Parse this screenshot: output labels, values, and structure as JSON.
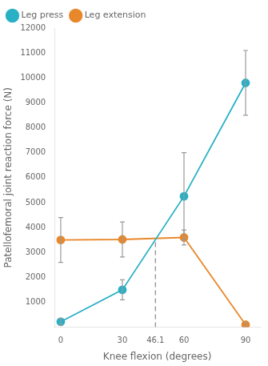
{
  "chart_data": {
    "type": "line",
    "xlabel": "Knee flexion (degrees)",
    "ylabel": "Patellofemoral joint reaction force (N)",
    "xlim": [
      -3,
      97
    ],
    "xticks": [
      0,
      30,
      46.1,
      60,
      90
    ],
    "ylim": [
      0,
      12000
    ],
    "yticks": [
      1000,
      2000,
      3000,
      4000,
      5000,
      6000,
      7000,
      8000,
      9000,
      10000,
      11000,
      12000
    ],
    "grid": false,
    "legend": "upper left",
    "marker": "circle",
    "error_bar_color": "#999999",
    "series": [
      {
        "name": "Leg press",
        "color": "#2ab0c5",
        "x": [
          0,
          30,
          60,
          90
        ],
        "values": [
          220,
          1500,
          5250,
          9800
        ],
        "errors": [
          130,
          400,
          1750,
          1300
        ]
      },
      {
        "name": "Leg extension",
        "color": "#e8882a",
        "x": [
          0,
          30,
          60,
          90
        ],
        "values": [
          3500,
          3520,
          3600,
          100
        ],
        "errors": [
          900,
          700,
          300,
          80
        ]
      }
    ],
    "lines": [
      {
        "x": [
          46.1,
          46.1
        ],
        "y": [
          0,
          3550
        ],
        "color": "#888888",
        "line_style": "dashed"
      }
    ]
  }
}
